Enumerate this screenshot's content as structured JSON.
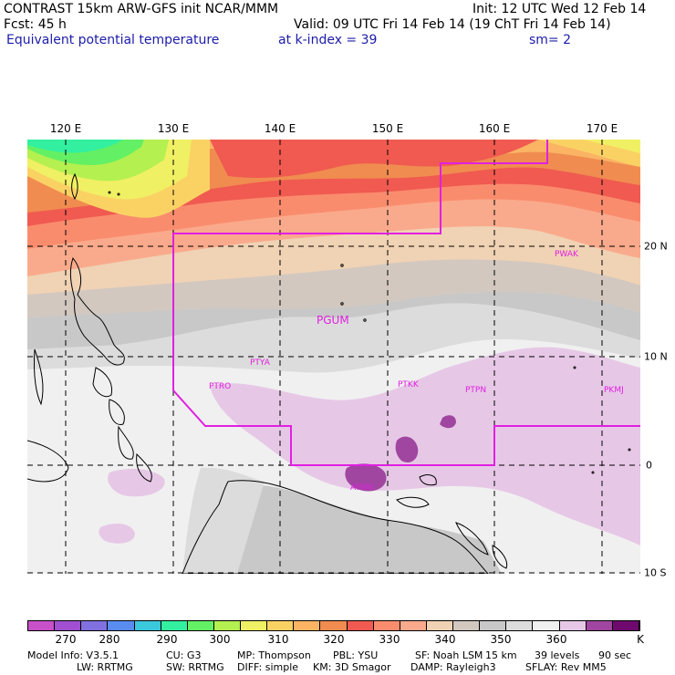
{
  "header": {
    "line1_left": "CONTRAST 15km ARW-GFS init    NCAR/MMM",
    "line1_right": "Init: 12 UTC Wed 12 Feb 14",
    "line2_left": "Fcst:     45 h",
    "line2_right": "Valid: 09 UTC Fri 14 Feb 14 (19 ChT Fri 14 Feb 14)",
    "field": "Equivalent potential temperature",
    "level": "at k-index =  39",
    "smooth": "sm= 2"
  },
  "map": {
    "lon_labels": [
      "120 E",
      "130 E",
      "140 E",
      "150 E",
      "160 E",
      "170 E"
    ],
    "lat_labels": [
      "20 N",
      "10 N",
      "0",
      "10 S"
    ],
    "stations": [
      "PGUM",
      "PWAK",
      "PTYA",
      "PTRO",
      "PTKK",
      "PTPN",
      "PKMJ",
      "AYWK"
    ]
  },
  "colorbar": {
    "tick_labels": [
      "270",
      "280",
      "290",
      "300",
      "310",
      "320",
      "330",
      "340",
      "350",
      "360",
      "K"
    ],
    "colors": [
      "#c850c8",
      "#a050d0",
      "#8070e0",
      "#5a8cf0",
      "#3cc8dc",
      "#32f0a0",
      "#64f064",
      "#b4f050",
      "#f0f064",
      "#fad264",
      "#fab464",
      "#f08c50",
      "#f05a50",
      "#fa8c6e",
      "#faaa8c",
      "#f0d2b4",
      "#d2c8c0",
      "#c8c8c8",
      "#dcdcdc",
      "#f0f0f0",
      "#e6c8e6",
      "#a046a0",
      "#6e0a6e"
    ]
  },
  "footer": {
    "line1": [
      "Model Info: V3.5.1",
      "CU: G3",
      "MP: Thompson",
      "PBL: YSU",
      "SF: Noah LSM",
      "15 km",
      "39 levels",
      "90 sec"
    ],
    "line2": [
      "LW: RRTMG",
      "SW: RRTMG",
      "DIFF: simple",
      "KM: 3D Smagor",
      "DAMP: Rayleigh3",
      "SFLAY: Rev MM5"
    ]
  }
}
